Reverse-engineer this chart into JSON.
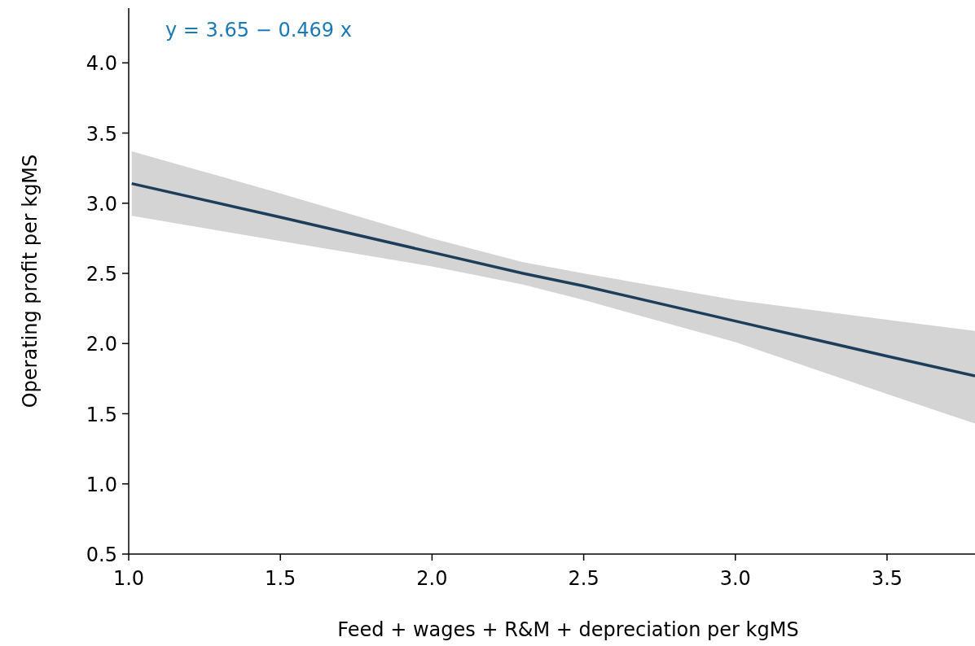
{
  "chart_data": {
    "type": "line",
    "xlabel": "Feed + wages + R&M + depreciation per kgMS",
    "ylabel": "Operating profit per kgMS",
    "annotations": [
      "y = 3.65 − 0.469 x"
    ],
    "xlim": [
      1.0,
      3.79
    ],
    "xticks": [
      {
        "value": 1.0,
        "label": "1.0"
      },
      {
        "value": 1.5,
        "label": "1.5"
      },
      {
        "value": 2.0,
        "label": "2.0"
      },
      {
        "value": 2.5,
        "label": "2.5"
      },
      {
        "value": 3.0,
        "label": "3.0"
      },
      {
        "value": 3.5,
        "label": "3.5"
      }
    ],
    "ylim": [
      0.5,
      4.39
    ],
    "yticks": [
      {
        "value": 0.5,
        "label": "0.5"
      },
      {
        "value": 1.0,
        "label": "1.0"
      },
      {
        "value": 1.5,
        "label": "1.5"
      },
      {
        "value": 2.0,
        "label": "2.0"
      },
      {
        "value": 2.5,
        "label": "2.5"
      },
      {
        "value": 3.0,
        "label": "3.0"
      },
      {
        "value": 3.5,
        "label": "3.5"
      },
      {
        "value": 4.0,
        "label": "4.0"
      }
    ],
    "grid": false,
    "marker": "none",
    "line_style": "solid",
    "series": [
      {
        "color": "#1d3e5a",
        "x": [
          1.01,
          1.5,
          2.0,
          2.3,
          2.5,
          3.0,
          3.5,
          3.79
        ],
        "values": [
          3.14,
          2.9,
          2.65,
          2.5,
          2.41,
          2.16,
          1.91,
          1.77
        ],
        "lower": [
          2.91,
          2.73,
          2.55,
          2.42,
          2.31,
          2.01,
          1.64,
          1.43
        ],
        "upper": [
          3.37,
          3.07,
          2.75,
          2.58,
          2.5,
          2.31,
          2.17,
          2.09
        ]
      }
    ]
  }
}
